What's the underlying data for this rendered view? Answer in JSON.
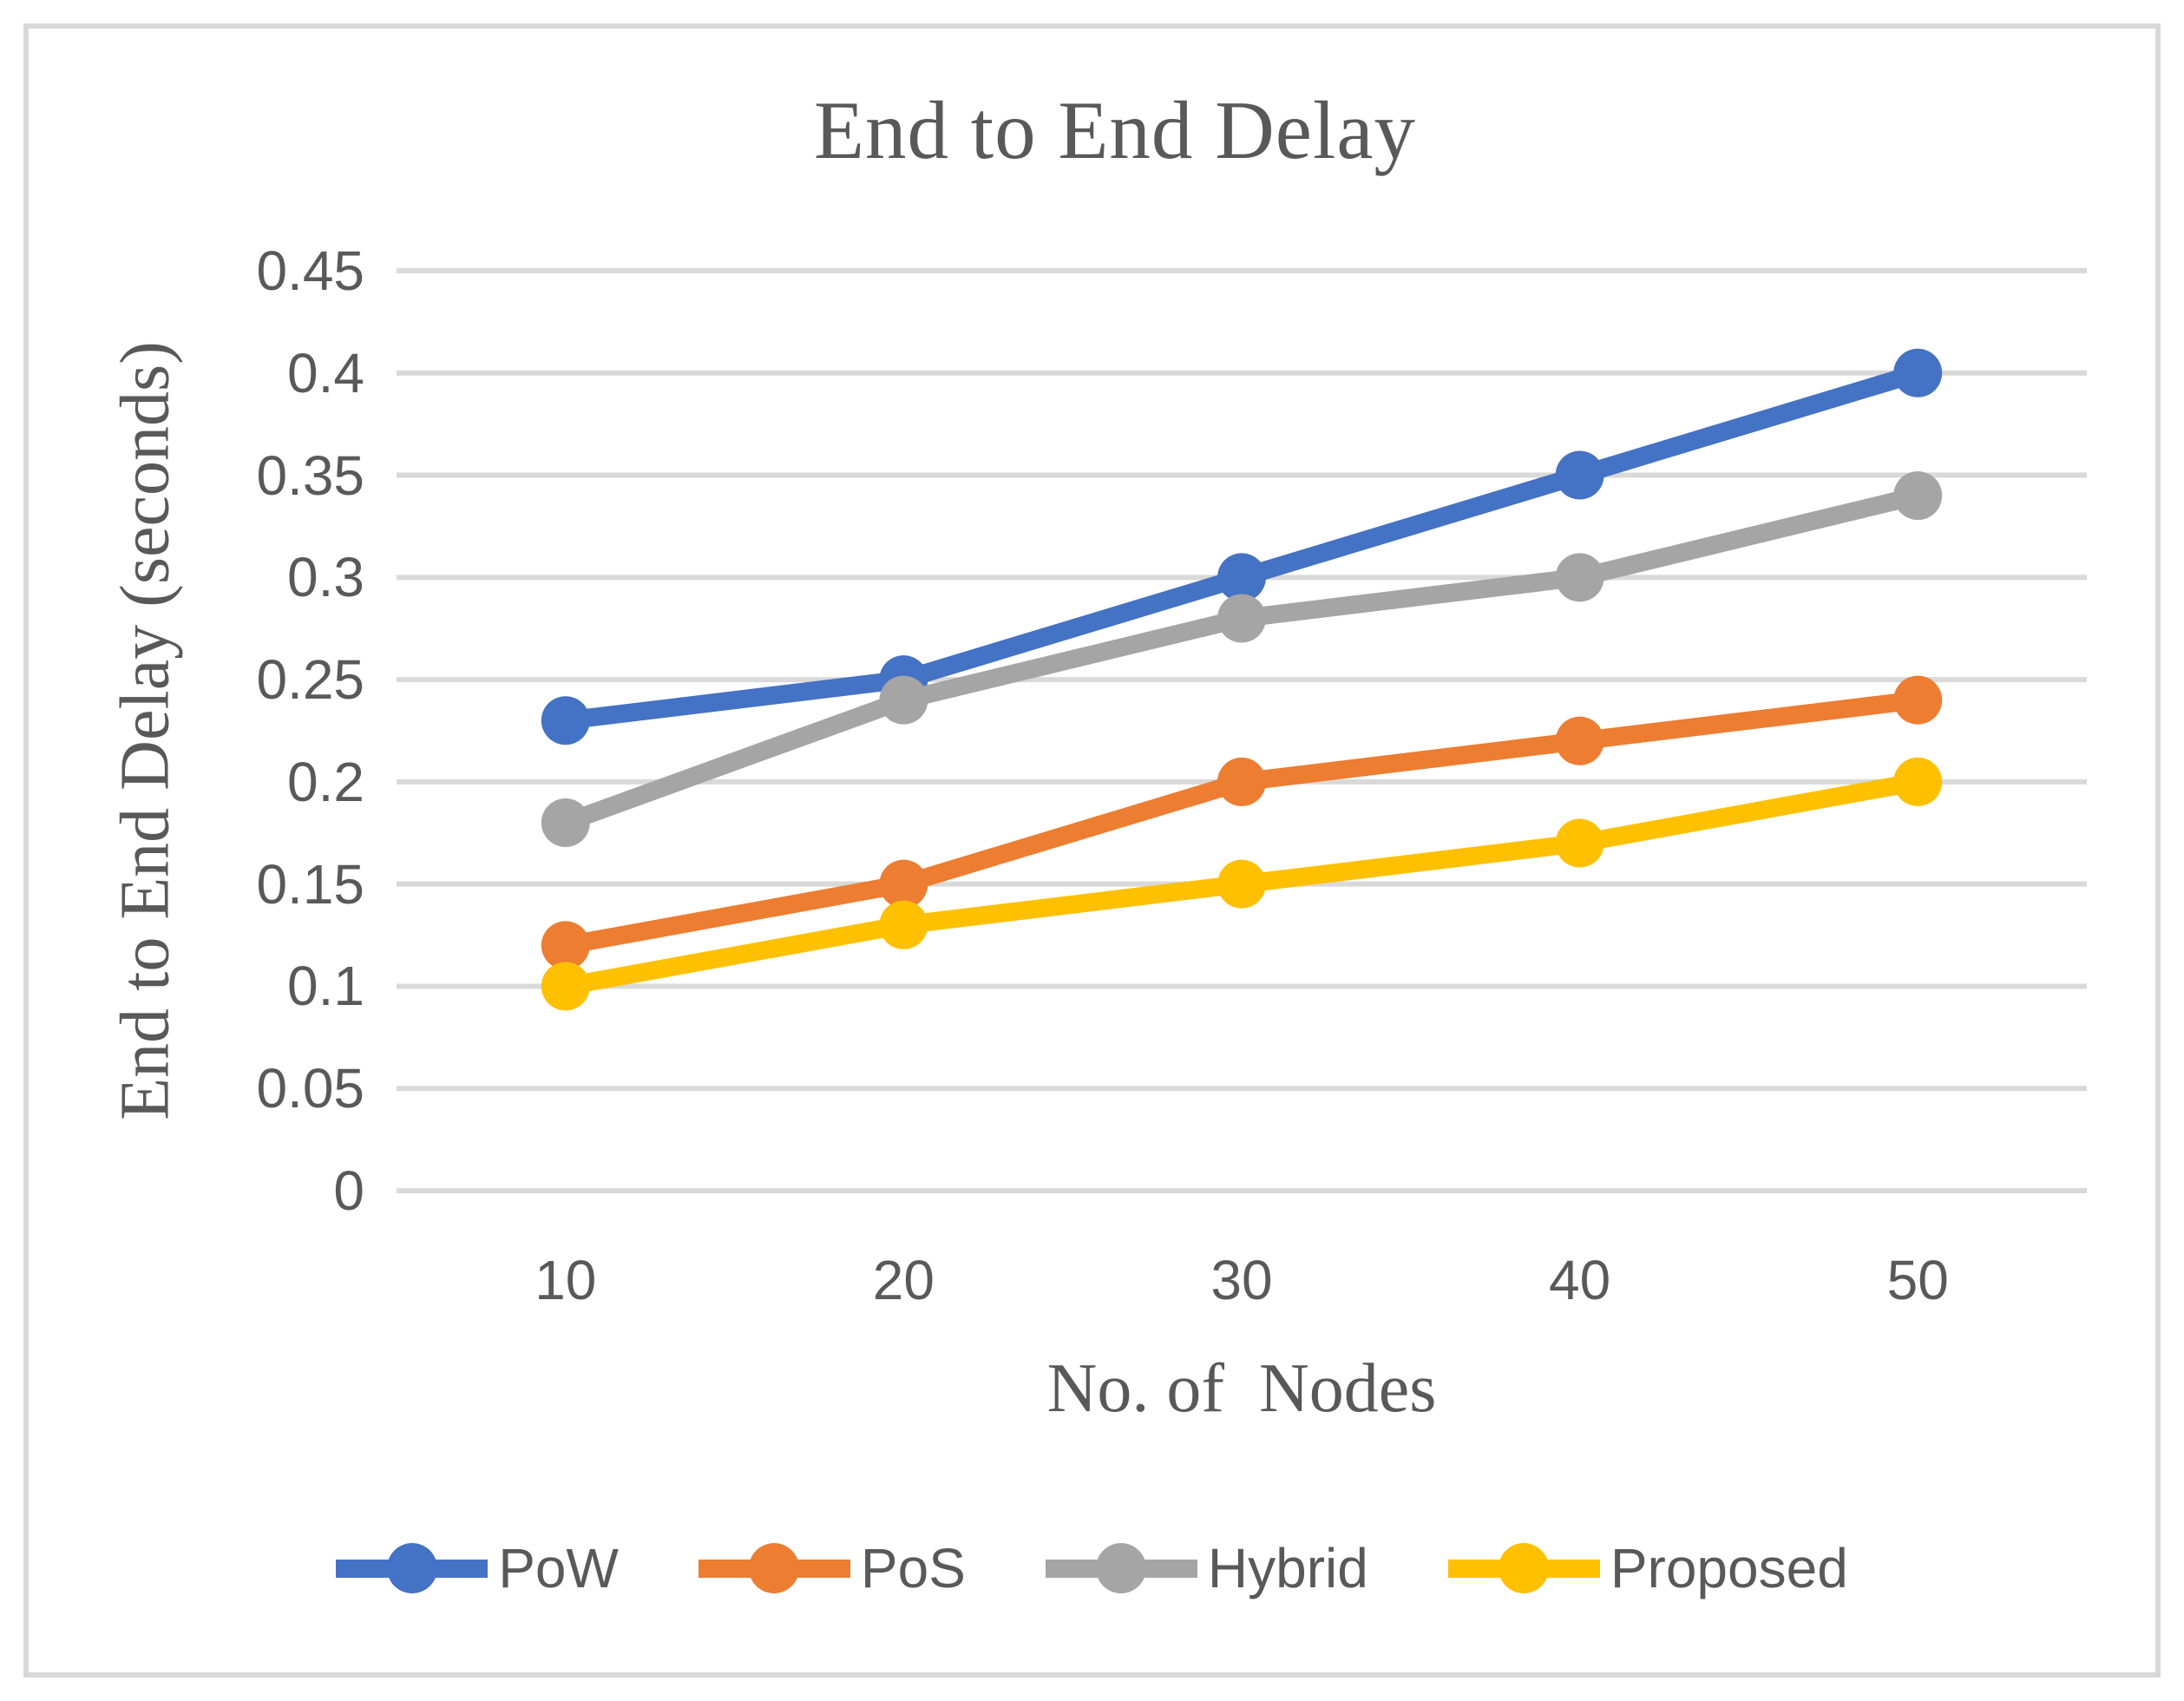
{
  "chart": {
    "title": "End to End Delay",
    "x_axis_title": "No. of  Nodes",
    "y_axis_title": "End to End Delay (seconds)"
  },
  "colors": {
    "text": "#595959",
    "gridline": "#d9d9d9",
    "frame_border": "#d9d9d9",
    "background": "#ffffff"
  },
  "chart_data": {
    "type": "line",
    "title": "End to End Delay",
    "xlabel": "No. of  Nodes",
    "ylabel": "End to End Delay (seconds)",
    "categories": [
      "10",
      "20",
      "30",
      "40",
      "50"
    ],
    "series": [
      {
        "name": "PoW",
        "color": "#4472c4",
        "values": [
          0.23,
          0.25,
          0.3,
          0.35,
          0.4
        ]
      },
      {
        "name": "PoS",
        "color": "#ed7d31",
        "values": [
          0.12,
          0.15,
          0.2,
          0.22,
          0.24
        ]
      },
      {
        "name": "Hybrid",
        "color": "#a5a5a5",
        "values": [
          0.18,
          0.24,
          0.28,
          0.3,
          0.34
        ]
      },
      {
        "name": "Proposed",
        "color": "#ffc000",
        "values": [
          0.1,
          0.13,
          0.15,
          0.17,
          0.2
        ]
      }
    ],
    "y_ticks": [
      "0",
      "0.05",
      "0.1",
      "0.15",
      "0.2",
      "0.25",
      "0.3",
      "0.35",
      "0.4",
      "0.45"
    ],
    "ylim": [
      0,
      0.45
    ],
    "grid": "horizontal",
    "legend_position": "bottom",
    "marker": "circle"
  }
}
